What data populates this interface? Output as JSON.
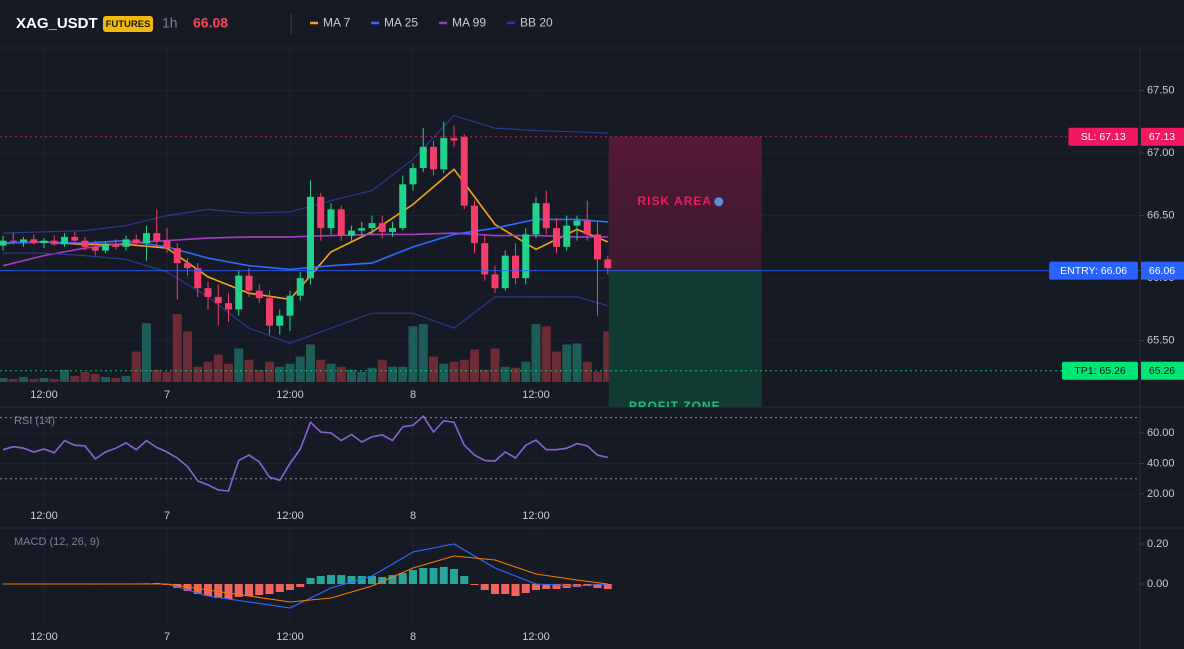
{
  "header": {
    "symbol": "XAG_USDT",
    "badge": "FUTURES",
    "interval": "1h",
    "price": 66.08
  },
  "chart_data": [
    {
      "type": "candlestick",
      "categories": [
        null,
        null,
        null,
        null,
        "12:00",
        null,
        null,
        null,
        null,
        null,
        null,
        null,
        null,
        null,
        null,
        null,
        "7",
        null,
        null,
        null,
        null,
        null,
        null,
        null,
        null,
        null,
        null,
        null,
        "12:00",
        null,
        null,
        null,
        null,
        null,
        null,
        null,
        null,
        null,
        null,
        null,
        "8",
        null,
        null,
        null,
        null,
        null,
        null,
        null,
        null,
        null,
        null,
        null,
        "12:00",
        null,
        null,
        null,
        null,
        null,
        null,
        null
      ],
      "open": [
        66.26,
        66.3,
        66.29,
        66.31,
        66.28,
        66.3,
        66.27,
        66.33,
        66.3,
        66.25,
        66.22,
        66.27,
        66.25,
        66.31,
        66.28,
        66.36,
        66.3,
        66.24,
        66.12,
        66.08,
        65.92,
        65.85,
        65.8,
        65.75,
        66.02,
        65.9,
        65.84,
        65.62,
        65.7,
        65.86,
        66.0,
        66.65,
        66.4,
        66.55,
        66.34,
        66.38,
        66.4,
        66.44,
        66.37,
        66.4,
        66.75,
        66.88,
        67.05,
        66.87,
        67.12,
        67.13,
        66.58,
        66.28,
        66.03,
        65.92,
        66.18,
        66.0,
        66.35,
        66.6,
        66.4,
        66.25,
        66.42,
        66.46,
        66.35,
        66.15
      ],
      "high": [
        66.34,
        66.36,
        66.33,
        66.35,
        66.32,
        66.34,
        66.36,
        66.37,
        66.33,
        66.3,
        66.29,
        66.31,
        66.34,
        66.35,
        66.42,
        66.55,
        66.4,
        66.28,
        66.16,
        66.12,
        65.97,
        65.95,
        65.88,
        66.06,
        66.08,
        65.95,
        65.9,
        65.75,
        65.9,
        66.05,
        66.78,
        66.68,
        66.6,
        66.58,
        66.42,
        66.45,
        66.5,
        66.5,
        66.45,
        66.82,
        66.92,
        67.2,
        67.1,
        67.25,
        67.22,
        67.15,
        66.62,
        66.35,
        66.1,
        66.22,
        66.28,
        66.4,
        66.65,
        66.7,
        66.48,
        66.5,
        66.5,
        66.62,
        66.45,
        66.18
      ],
      "low": [
        66.22,
        66.27,
        66.25,
        66.27,
        66.24,
        66.26,
        66.25,
        66.28,
        66.22,
        66.18,
        66.2,
        66.23,
        66.22,
        66.25,
        66.14,
        66.25,
        66.2,
        65.83,
        66.02,
        65.85,
        65.75,
        65.62,
        65.65,
        65.7,
        65.85,
        65.8,
        65.55,
        65.55,
        65.58,
        65.82,
        65.95,
        66.3,
        66.35,
        66.3,
        66.3,
        66.33,
        66.35,
        66.32,
        66.33,
        66.38,
        66.7,
        66.85,
        66.82,
        66.84,
        67.05,
        66.55,
        66.2,
        65.98,
        65.88,
        65.9,
        65.95,
        65.95,
        66.32,
        66.35,
        66.2,
        66.22,
        66.3,
        66.3,
        65.7,
        66.03
      ],
      "close": [
        66.3,
        66.29,
        66.31,
        66.28,
        66.3,
        66.27,
        66.33,
        66.3,
        66.25,
        66.22,
        66.27,
        66.25,
        66.31,
        66.28,
        66.36,
        66.3,
        66.24,
        66.12,
        66.08,
        65.92,
        65.85,
        65.8,
        65.75,
        66.02,
        65.9,
        65.84,
        65.62,
        65.7,
        65.86,
        66.0,
        66.65,
        66.4,
        66.55,
        66.34,
        66.38,
        66.4,
        66.44,
        66.37,
        66.4,
        66.75,
        66.88,
        67.05,
        66.87,
        67.12,
        67.1,
        66.58,
        66.28,
        66.03,
        65.92,
        66.18,
        66.0,
        66.35,
        66.6,
        66.4,
        66.25,
        66.42,
        66.46,
        66.35,
        66.15,
        66.08
      ],
      "volume": [
        4,
        3,
        5,
        3,
        4,
        3,
        12,
        6,
        10,
        8,
        5,
        4,
        6,
        30,
        58,
        12,
        10,
        67,
        50,
        15,
        20,
        27,
        18,
        33,
        22,
        12,
        20,
        15,
        18,
        25,
        37,
        22,
        18,
        15,
        12,
        10,
        14,
        22,
        15,
        15,
        55,
        57,
        25,
        18,
        20,
        22,
        32,
        12,
        33,
        15,
        14,
        20,
        57,
        55,
        30,
        37,
        38,
        20,
        10,
        50
      ],
      "up_color": "#22d18b",
      "down_color": "#f23d6d",
      "volume_up_color": "#1d5c57",
      "volume_down_color": "#6b2a35",
      "ylim": [
        64.97,
        67.84
      ],
      "yticks": [
        {
          "value": 65.5,
          "label": "65.50"
        },
        {
          "value": 66,
          "label": "66.00"
        },
        {
          "value": 66.5,
          "label": "66.50"
        },
        {
          "value": 67,
          "label": "67.00"
        },
        {
          "value": 67.5,
          "label": "67.50"
        }
      ],
      "grid": true,
      "overlays": [
        {
          "name": "MA 7",
          "color": "#f7a21b",
          "x": [
            0,
            4,
            8,
            12,
            16,
            20,
            24,
            28,
            32,
            36,
            40,
            44,
            48,
            52,
            56,
            59
          ],
          "values": [
            66.28,
            66.29,
            66.27,
            66.27,
            66.24,
            66.01,
            65.88,
            65.83,
            66.21,
            66.37,
            66.59,
            66.87,
            66.43,
            66.23,
            66.39,
            66.29
          ]
        },
        {
          "name": "MA 25",
          "color": "#2f6bff",
          "x": [
            0,
            4,
            8,
            12,
            16,
            20,
            24,
            28,
            32,
            36,
            40,
            44,
            48,
            52,
            56,
            59
          ],
          "values": [
            66.28,
            66.29,
            66.28,
            66.3,
            66.25,
            66.16,
            66.1,
            66.07,
            66.1,
            66.12,
            66.25,
            66.35,
            66.4,
            66.47,
            66.47,
            66.45
          ]
        },
        {
          "name": "MA 99",
          "color": "#a23cc4",
          "x": [
            0,
            4,
            8,
            12,
            16,
            20,
            24,
            28,
            32,
            36,
            40,
            44,
            48,
            52,
            56,
            59
          ],
          "values": [
            66.1,
            66.18,
            66.24,
            66.28,
            66.3,
            66.32,
            66.33,
            66.33,
            66.34,
            66.35,
            66.35,
            66.36,
            66.34,
            66.34,
            66.33,
            66.33
          ]
        },
        {
          "name": "BB 20",
          "color": "#2a3a8c",
          "x": [
            0,
            4,
            8,
            12,
            16,
            20,
            24,
            28,
            32,
            36,
            40,
            44,
            48,
            52,
            56,
            59
          ],
          "upper": [
            66.36,
            66.37,
            66.38,
            66.42,
            66.5,
            66.55,
            66.52,
            66.53,
            66.62,
            66.7,
            66.95,
            67.3,
            67.2,
            67.18,
            67.17,
            67.16
          ],
          "lower": [
            66.2,
            66.2,
            66.18,
            66.15,
            66.05,
            65.85,
            65.6,
            65.48,
            65.6,
            65.72,
            65.72,
            65.6,
            65.85,
            65.85,
            65.85,
            65.78
          ]
        }
      ],
      "levels": [
        {
          "tag": "SL: 67.13",
          "value": 67.13,
          "label": "67.13",
          "color": "#f0185e",
          "text_color": "#ffffff",
          "style": "dotted"
        },
        {
          "tag": "ENTRY: 66.06",
          "value": 66.06,
          "label": "66.06",
          "color": "#2962ff",
          "text_color": "#ffffff",
          "style": "solid"
        },
        {
          "tag": "TP1: 65.26",
          "value": 65.26,
          "label": "65.26",
          "color": "#00e676",
          "text_color": "#0b1a12",
          "style": "dotted"
        }
      ],
      "zones": [
        {
          "label": "RISK AREA",
          "color": "#f0185e"
        },
        {
          "label": "PROFIT ZONE",
          "color": "#1fbf7a"
        }
      ]
    },
    {
      "type": "line",
      "title": "RSI (14)",
      "values": [
        49,
        51,
        50,
        47.5,
        49.5,
        47,
        55,
        52,
        51.5,
        43,
        47.5,
        50,
        53.5,
        49,
        55,
        50.5,
        47.5,
        43.5,
        38,
        28.5,
        26,
        22.6,
        22,
        42,
        45.5,
        41,
        31,
        29,
        40,
        49.5,
        67,
        60.6,
        60,
        55,
        59,
        54,
        57.5,
        58.7,
        55,
        64,
        65,
        71,
        60.6,
        68,
        67,
        52,
        45.5,
        42,
        41.6,
        47.5,
        43.6,
        52,
        55.4,
        49,
        49,
        50,
        53,
        51.5,
        45.5,
        44
      ],
      "color": "#8a63d2",
      "ylim": [
        12.8,
        77
      ],
      "yticks": [
        {
          "value": 20,
          "label": "20.00"
        },
        {
          "value": 40,
          "label": "40.00"
        },
        {
          "value": 60,
          "label": "60.00"
        }
      ],
      "levels": [
        70,
        30
      ]
    },
    {
      "type": "macd",
      "title": "MACD (12, 26, 9)",
      "histogram": [
        0,
        0,
        0,
        0,
        -0.002,
        0,
        0.002,
        0,
        -0.002,
        -0.003,
        0,
        0,
        0.002,
        0.003,
        0.004,
        0.005,
        -0.005,
        -0.02,
        -0.035,
        -0.05,
        -0.06,
        -0.07,
        -0.075,
        -0.065,
        -0.06,
        -0.055,
        -0.05,
        -0.04,
        -0.03,
        -0.015,
        0.03,
        0.04,
        0.045,
        0.045,
        0.04,
        0.04,
        0.04,
        0.035,
        0.045,
        0.055,
        0.07,
        0.08,
        0.08,
        0.085,
        0.075,
        0.04,
        -0.005,
        -0.03,
        -0.05,
        -0.05,
        -0.06,
        -0.045,
        -0.03,
        -0.025,
        -0.025,
        -0.02,
        -0.015,
        -0.01,
        -0.02,
        -0.025
      ],
      "up_color": "#26a69a",
      "down_color": "#f0635f",
      "series": [
        {
          "name": "MACD",
          "color": "#2f6bff",
          "x": [
            0,
            4,
            8,
            12,
            16,
            20,
            24,
            28,
            32,
            36,
            40,
            44,
            48,
            52,
            56,
            59
          ],
          "values": [
            0,
            0,
            0,
            0,
            0,
            -0.06,
            -0.09,
            -0.12,
            -0.02,
            0.04,
            0.16,
            0.2,
            0.08,
            0,
            -0.01,
            0
          ]
        },
        {
          "name": "Signal",
          "color": "#f57c00",
          "x": [
            0,
            4,
            8,
            12,
            16,
            20,
            24,
            28,
            32,
            36,
            40,
            44,
            48,
            52,
            56,
            59
          ],
          "values": [
            0,
            0,
            0,
            0,
            0,
            -0.03,
            -0.06,
            -0.09,
            -0.07,
            -0.01,
            0.08,
            0.14,
            0.12,
            0.05,
            0.02,
            0
          ]
        }
      ],
      "ylim": [
        -0.205,
        0.28
      ],
      "yticks": [
        {
          "value": 0,
          "label": "0.00"
        },
        {
          "value": 0.2,
          "label": "0.20"
        }
      ]
    }
  ]
}
